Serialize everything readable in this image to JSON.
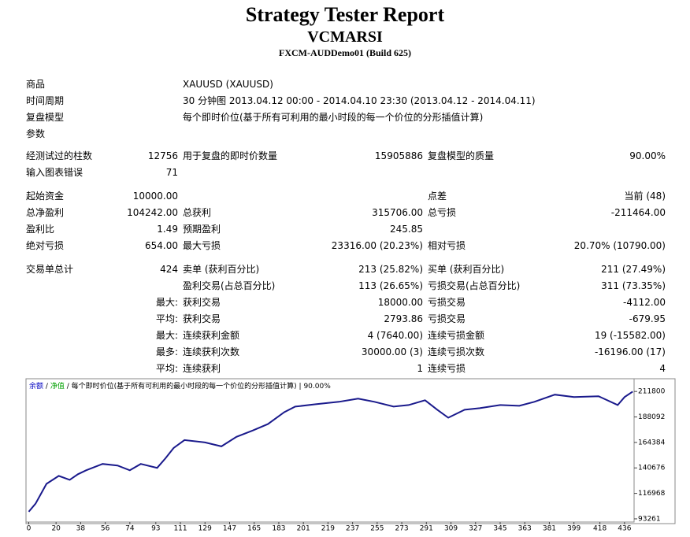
{
  "header": {
    "title": "Strategy Tester Report",
    "subtitle": "VCMARSI",
    "build": "FXCM-AUDDemo01 (Build 625)"
  },
  "info": [
    [
      "商品",
      "XAUUSD (XAUUSD)"
    ],
    [
      "时间周期",
      "30 分钟图 2013.04.12 00:00 - 2014.04.10 23:30 (2013.04.12 - 2014.04.11)"
    ],
    [
      "复盘模型",
      "每个即时价位(基于所有可利用的最小时段的每一个价位的分形插值计算)"
    ],
    [
      "参数",
      null
    ]
  ],
  "stats": [
    [
      [
        "经测试过的柱数",
        "12756",
        "用于复盘的即时价数量",
        "15905886",
        "复盘模型的质量",
        "90.00%"
      ],
      [
        "输入图表错误",
        "71",
        null,
        null,
        null,
        null
      ]
    ],
    [
      [
        "起始资金",
        "10000.00",
        null,
        null,
        "点差",
        "当前 (48)"
      ],
      [
        "总净盈利",
        "104242.00",
        "总获利",
        "315706.00",
        "总亏损",
        "-211464.00"
      ],
      [
        "盈利比",
        "1.49",
        "预期盈利",
        "245.85",
        null,
        null
      ],
      [
        "绝对亏损",
        "654.00",
        "最大亏损",
        "23316.00 (20.23%)",
        "相对亏损",
        "20.70% (10790.00)"
      ]
    ],
    [
      [
        "交易单总计",
        "424",
        "卖单 (获利百分比)",
        "213 (25.82%)",
        "买单 (获利百分比)",
        "211 (27.49%)"
      ],
      [
        null,
        null,
        "盈利交易(占总百分比)",
        "113 (26.65%)",
        "亏损交易(占总百分比)",
        "311 (73.35%)"
      ],
      [
        null,
        "最大:",
        "获利交易",
        "18000.00",
        "亏损交易",
        "-4112.00"
      ],
      [
        null,
        "平均:",
        "获利交易",
        "2793.86",
        "亏损交易",
        "-679.95"
      ],
      [
        null,
        "最大:",
        "连续获利金额",
        "4 (7640.00)",
        "连续亏损金额",
        "19 (-15582.00)"
      ],
      [
        null,
        "最多:",
        "连续获利次数",
        "30000.00 (3)",
        "连续亏损次数",
        "-16196.00 (17)"
      ],
      [
        null,
        "平均:",
        "连续获利",
        "1",
        "连续亏损",
        "4"
      ]
    ]
  ],
  "chart_data": {
    "type": "line",
    "legend": [
      {
        "text": "余额",
        "color": "#0000c0"
      },
      {
        "text": "/",
        "color": "#000000"
      },
      {
        "text": "净值",
        "color": "#00a000"
      },
      {
        "text": "/",
        "color": "#000000"
      },
      {
        "text": "每个即时价位(基于所有可利用的最小时段的每一个价位的分形插值计算)",
        "color": "#000000"
      },
      {
        "text": "|",
        "color": "#000000"
      },
      {
        "text": "90.00%",
        "color": "#000000"
      }
    ],
    "x": [
      0,
      5,
      13,
      22,
      30,
      36,
      42,
      54,
      65,
      74,
      82,
      94,
      100,
      106,
      114,
      129,
      141,
      152,
      164,
      175,
      187,
      195,
      210,
      227,
      241,
      253,
      267,
      278,
      290,
      299,
      307,
      319,
      330,
      345,
      359,
      370,
      385,
      399,
      417,
      431,
      436,
      442
    ],
    "series": [
      {
        "color": "#1a1a8c",
        "values": [
          99929,
          107338,
          125861,
          133270,
          129565,
          134751,
          138456,
          144383,
          142901,
          138456,
          144383,
          140679,
          149569,
          159201,
          166610,
          164388,
          160683,
          169574,
          175501,
          181428,
          192541,
          197728,
          199950,
          202173,
          205137,
          202173,
          197728,
          199210,
          203655,
          194764,
          187355,
          194764,
          196246,
          199210,
          198469,
          202173,
          208841,
          206619,
          207360,
          199210,
          206619,
          211700
        ]
      }
    ],
    "xlim": [
      -2,
      443
    ],
    "ylim": [
      90297,
      223659
    ],
    "xticks": [
      0,
      20,
      38,
      56,
      74,
      93,
      111,
      129,
      147,
      165,
      183,
      201,
      219,
      237,
      255,
      273,
      291,
      309,
      327,
      345,
      363,
      381,
      399,
      418,
      436
    ],
    "yticks": [
      93261,
      116968,
      140676,
      164384,
      188092,
      211800
    ]
  }
}
